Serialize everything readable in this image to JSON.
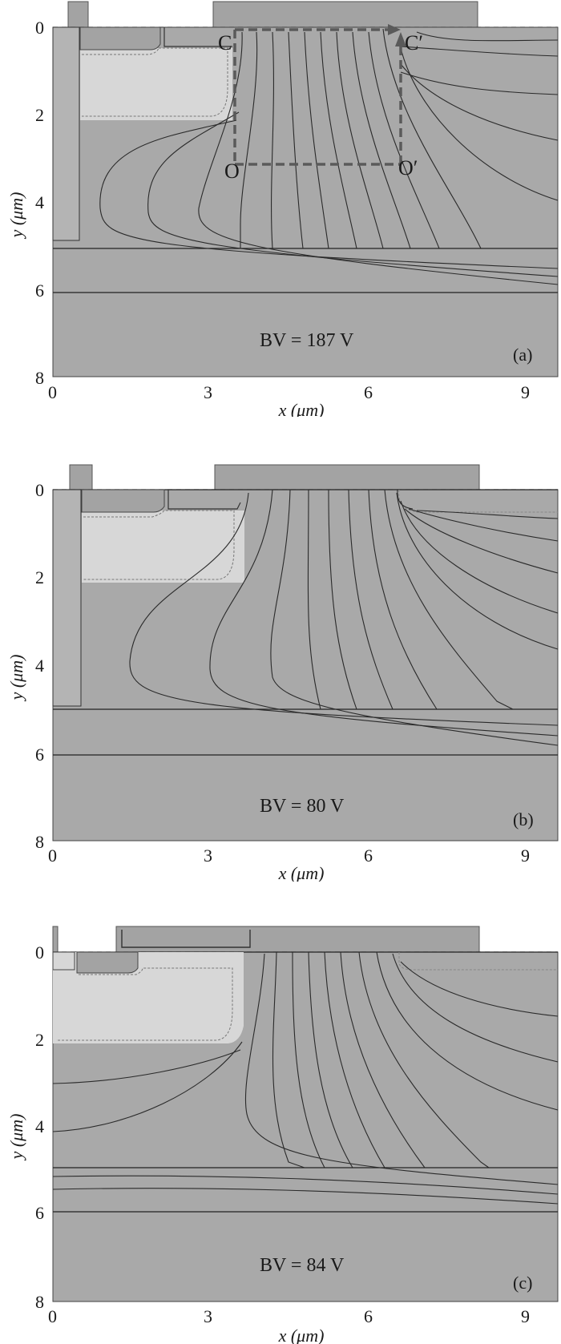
{
  "colors": {
    "substrate": "#a9a9a9",
    "region_light": "#d7d7d7",
    "contact": "#a3a3a3",
    "contour": "#2a2a2a",
    "dashed_path": "#5a5a5a",
    "background": "#ffffff"
  },
  "axes": {
    "xlabel": "x (μm)",
    "ylabel": "y (μm)",
    "xticks": [
      "0",
      "3",
      "6",
      "9"
    ],
    "yticks": [
      "0",
      "2",
      "4",
      "6",
      "8"
    ],
    "xrange": [
      0,
      9.5
    ],
    "yrange": [
      0,
      8
    ]
  },
  "panels": [
    {
      "id": "a",
      "tag": "(a)",
      "bv_text": "BV = 187 V",
      "path_labels": [
        "C",
        "C′",
        "O",
        "O′"
      ],
      "contour_count": 17
    },
    {
      "id": "b",
      "tag": "(b)",
      "bv_text": "BV = 80 V",
      "contour_count": 14
    },
    {
      "id": "c",
      "tag": "(c)",
      "bv_text": "BV = 84 V",
      "contour_count": 14
    }
  ]
}
